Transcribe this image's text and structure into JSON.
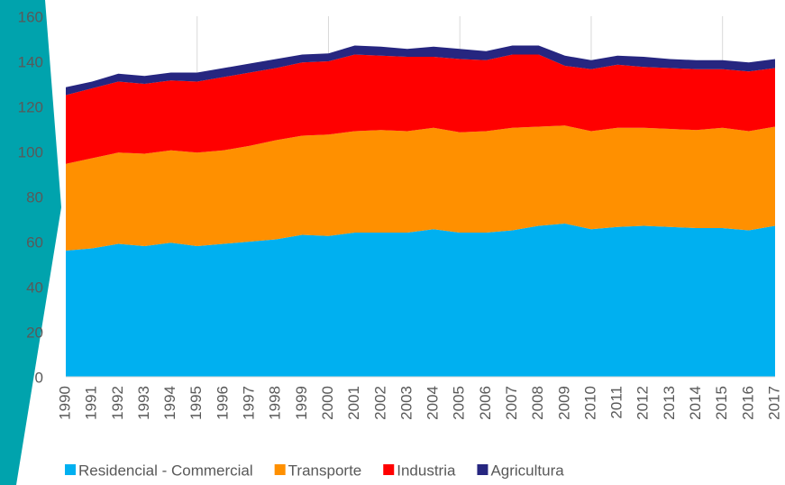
{
  "chart_data": {
    "type": "stacked_area",
    "categories": [
      "1990",
      "1991",
      "1992",
      "1993",
      "1994",
      "1995",
      "1996",
      "1997",
      "1998",
      "1999",
      "2000",
      "2001",
      "2002",
      "2003",
      "2004",
      "2005",
      "2006",
      "2007",
      "2008",
      "2009",
      "2010",
      "2011",
      "2012",
      "2013",
      "2014",
      "2015",
      "2016",
      "2017"
    ],
    "series": [
      {
        "name": "Residencial - Commercial",
        "color": "#00b0f0",
        "values": [
          56,
          57,
          59,
          58,
          59.5,
          58,
          59,
          60,
          61,
          63,
          62.5,
          64,
          64,
          64,
          65.5,
          64,
          64,
          65,
          67,
          68,
          65.5,
          66.5,
          67,
          66.5,
          66,
          66,
          65,
          67
        ]
      },
      {
        "name": "Transporte",
        "color": "#ff9000",
        "values": [
          38.5,
          40,
          40.5,
          41,
          41,
          41.5,
          41.5,
          42.5,
          44,
          44,
          45,
          45,
          45.5,
          45,
          45,
          44.5,
          45,
          45.5,
          44,
          43.5,
          43.5,
          44,
          43.5,
          43.5,
          43.5,
          44.5,
          44,
          44
        ]
      },
      {
        "name": "Industria",
        "color": "#ff0000",
        "values": [
          30.5,
          31,
          31.5,
          31,
          31,
          31.5,
          32.5,
          32.5,
          32,
          32.5,
          32.5,
          34,
          33,
          33,
          31.5,
          32.5,
          31.5,
          32.5,
          32,
          26.5,
          27.5,
          28,
          27,
          27,
          27,
          26,
          26.5,
          26
        ]
      },
      {
        "name": "Agricultura",
        "color": "#262680",
        "values": [
          3.5,
          3,
          3.5,
          3.5,
          3.5,
          4,
          4,
          4,
          4,
          3.5,
          3.5,
          4,
          4,
          3.5,
          4.5,
          4.5,
          4,
          4,
          4,
          4.5,
          4,
          4,
          4.5,
          4,
          4,
          4,
          4,
          4
        ]
      }
    ],
    "ylim": [
      0,
      160
    ],
    "yticks": [
      0,
      20,
      40,
      60,
      80,
      100,
      120,
      140,
      160
    ]
  }
}
